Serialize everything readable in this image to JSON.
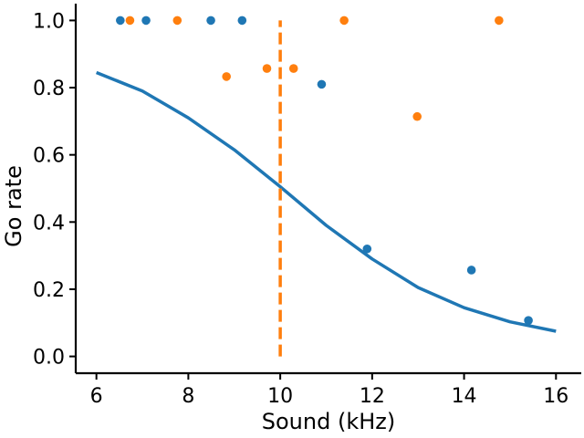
{
  "chart_data": {
    "type": "scatter",
    "title": "",
    "xlabel": "Sound (kHz)",
    "ylabel": "Go rate",
    "xlim": [
      5.55,
      16.55
    ],
    "ylim": [
      -0.05,
      1.05
    ],
    "xticks": [
      6,
      8,
      10,
      12,
      14,
      16
    ],
    "xtick_labels": [
      "6",
      "8",
      "10",
      "12",
      "14",
      "16"
    ],
    "yticks": [
      0.0,
      0.2,
      0.4,
      0.6,
      0.8,
      1.0
    ],
    "ytick_labels": [
      "0.0",
      "0.2",
      "0.4",
      "0.6",
      "0.8",
      "1.0"
    ],
    "grid": false,
    "series": [
      {
        "kind": "scatter",
        "color": "#1f77b4",
        "points": [
          {
            "x": 6.52,
            "y": 1.0
          },
          {
            "x": 7.08,
            "y": 1.0
          },
          {
            "x": 8.49,
            "y": 1.0
          },
          {
            "x": 9.17,
            "y": 1.0
          },
          {
            "x": 10.9,
            "y": 0.81
          },
          {
            "x": 11.89,
            "y": 0.32
          },
          {
            "x": 14.16,
            "y": 0.257
          },
          {
            "x": 15.4,
            "y": 0.107
          }
        ]
      },
      {
        "kind": "scatter",
        "color": "#ff7f0e",
        "points": [
          {
            "x": 6.73,
            "y": 1.0
          },
          {
            "x": 7.76,
            "y": 1.0
          },
          {
            "x": 8.83,
            "y": 0.833
          },
          {
            "x": 9.71,
            "y": 0.857
          },
          {
            "x": 10.29,
            "y": 0.857
          },
          {
            "x": 11.39,
            "y": 1.0
          },
          {
            "x": 12.98,
            "y": 0.714
          },
          {
            "x": 14.76,
            "y": 1.0
          }
        ]
      },
      {
        "kind": "line",
        "color": "#1f77b4",
        "points": [
          {
            "x": 6.0,
            "y": 0.845
          },
          {
            "x": 7.0,
            "y": 0.79
          },
          {
            "x": 8.0,
            "y": 0.71
          },
          {
            "x": 9.0,
            "y": 0.615
          },
          {
            "x": 10.0,
            "y": 0.505
          },
          {
            "x": 11.0,
            "y": 0.39
          },
          {
            "x": 12.0,
            "y": 0.29
          },
          {
            "x": 13.0,
            "y": 0.205
          },
          {
            "x": 14.0,
            "y": 0.145
          },
          {
            "x": 15.0,
            "y": 0.103
          },
          {
            "x": 16.0,
            "y": 0.075
          }
        ]
      },
      {
        "kind": "vline",
        "color": "#ff7f0e",
        "style": "dashed",
        "x": 10.0,
        "y_range": [
          0.0,
          1.0
        ]
      }
    ]
  }
}
